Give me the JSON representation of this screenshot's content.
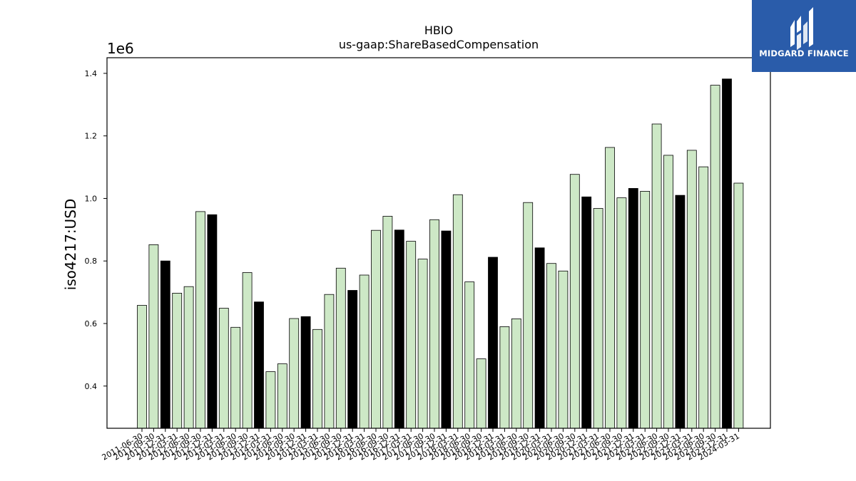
{
  "chart_data": {
    "type": "bar",
    "title": "HBIO",
    "subtitle": "us-gaap:ShareBasedCompensation",
    "ylabel": "iso4217:USD",
    "y_offset_label": "1e6",
    "y_multiplier": 1000000,
    "ylim": [
      0.265,
      1.45
    ],
    "yticks": [
      "0.4",
      "0.6",
      "0.8",
      "1.0",
      "1.2",
      "1.4"
    ],
    "grid": false,
    "bar_colors": {
      "quarter": "#cde8c6",
      "fiscal_year_end": "#000000",
      "edge": "#000000"
    },
    "categories": [
      "2011-06-30",
      "2011-09-30",
      "2011-12-31",
      "2012-03-31",
      "2012-06-30",
      "2012-09-30",
      "2012-12-31",
      "2013-03-31",
      "2013-06-30",
      "2013-09-30",
      "2013-12-31",
      "2014-03-31",
      "2014-06-30",
      "2014-09-30",
      "2014-12-31",
      "2015-03-31",
      "2015-06-30",
      "2015-09-30",
      "2015-12-31",
      "2016-03-31",
      "2016-06-30",
      "2016-09-30",
      "2016-12-31",
      "2017-03-31",
      "2017-06-30",
      "2017-09-30",
      "2017-12-31",
      "2018-03-31",
      "2018-06-30",
      "2018-09-30",
      "2018-12-31",
      "2019-03-31",
      "2019-06-30",
      "2019-09-30",
      "2019-12-31",
      "2020-03-31",
      "2020-06-30",
      "2020-09-30",
      "2020-12-31",
      "2021-03-31",
      "2021-06-30",
      "2021-09-30",
      "2021-12-31",
      "2022-03-31",
      "2022-06-30",
      "2022-09-30",
      "2022-12-31",
      "2023-03-31",
      "2023-06-30",
      "2023-09-30",
      "2023-12-31",
      "2024-03-31"
    ],
    "values": [
      0.658,
      0.852,
      0.8,
      0.697,
      0.718,
      0.958,
      0.948,
      0.649,
      0.588,
      0.763,
      0.669,
      0.446,
      0.471,
      0.616,
      0.622,
      0.581,
      0.693,
      0.777,
      0.706,
      0.755,
      0.898,
      0.943,
      0.899,
      0.863,
      0.806,
      0.932,
      0.896,
      1.012,
      0.733,
      0.487,
      0.812,
      0.59,
      0.615,
      0.987,
      0.842,
      0.792,
      0.768,
      1.077,
      1.005,
      0.968,
      1.163,
      1.002,
      1.032,
      1.023,
      1.238,
      1.138,
      1.01,
      1.154,
      1.101,
      1.362,
      1.382,
      1.049
    ],
    "highlight": [
      false,
      false,
      true,
      false,
      false,
      false,
      true,
      false,
      false,
      false,
      true,
      false,
      false,
      false,
      true,
      false,
      false,
      false,
      true,
      false,
      false,
      false,
      true,
      false,
      false,
      false,
      true,
      false,
      false,
      false,
      true,
      false,
      false,
      false,
      true,
      false,
      false,
      false,
      true,
      false,
      false,
      false,
      true,
      false,
      false,
      false,
      true,
      false,
      false,
      false,
      true,
      false
    ]
  },
  "logo": {
    "text": "MIDGARD FINANCE",
    "background": "#2a5caa"
  }
}
